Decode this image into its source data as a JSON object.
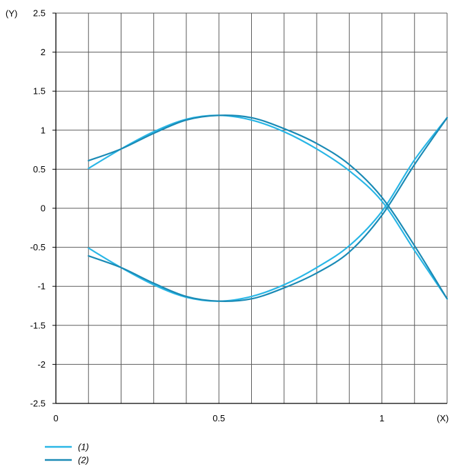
{
  "chart_data": {
    "type": "line",
    "xlabel": "(X)",
    "ylabel": "(Y)",
    "xlim": [
      0,
      1.2
    ],
    "ylim": [
      -2.5,
      2.5
    ],
    "x_ticks": [
      0,
      0.5,
      1
    ],
    "x_tick_labels": [
      "0",
      "0.5",
      "1"
    ],
    "y_ticks": [
      2.5,
      2,
      1.5,
      1,
      0.5,
      0,
      -0.5,
      -1,
      -1.5,
      -2,
      -2.5
    ],
    "y_tick_labels": [
      "2.5",
      "2",
      "1.5",
      "1",
      "0.5",
      "0",
      "-0.5",
      "-1",
      "-1.5",
      "-2",
      "-2.5"
    ],
    "grid": true,
    "legend_position": "bottom-left",
    "series": [
      {
        "name": "(1)",
        "color": "#29b6e6",
        "branches": [
          {
            "x": [
              0.1,
              0.2,
              0.3,
              0.4,
              0.5,
              0.6,
              0.7,
              0.8,
              0.9,
              1.0,
              1.1,
              1.2
            ],
            "y": [
              0.51,
              0.76,
              0.98,
              1.14,
              1.19,
              1.13,
              0.98,
              0.76,
              0.48,
              0.09,
              -0.54,
              -1.16
            ]
          },
          {
            "x": [
              0.1,
              0.2,
              0.3,
              0.4,
              0.5,
              0.6,
              0.7,
              0.8,
              0.9,
              1.0,
              1.1,
              1.2
            ],
            "y": [
              -0.51,
              -0.76,
              -0.98,
              -1.14,
              -1.19,
              -1.13,
              -0.98,
              -0.76,
              -0.48,
              -0.04,
              0.62,
              1.16
            ]
          }
        ]
      },
      {
        "name": "(2)",
        "color": "#1a8ab5",
        "branches": [
          {
            "x": [
              0.1,
              0.2,
              0.3,
              0.4,
              0.5,
              0.6,
              0.7,
              0.8,
              0.9,
              1.0,
              1.1,
              1.2
            ],
            "y": [
              0.61,
              0.76,
              0.96,
              1.13,
              1.19,
              1.16,
              1.02,
              0.83,
              0.56,
              0.14,
              -0.48,
              -1.16
            ]
          },
          {
            "x": [
              0.1,
              0.2,
              0.3,
              0.4,
              0.5,
              0.6,
              0.7,
              0.8,
              0.9,
              1.0,
              1.1,
              1.2
            ],
            "y": [
              -0.61,
              -0.76,
              -0.96,
              -1.13,
              -1.19,
              -1.16,
              -1.02,
              -0.83,
              -0.56,
              -0.09,
              0.56,
              1.16
            ]
          }
        ]
      }
    ]
  },
  "colors": {
    "grid": "#5a5a5a",
    "axis": "#000000",
    "background": "#ffffff"
  }
}
